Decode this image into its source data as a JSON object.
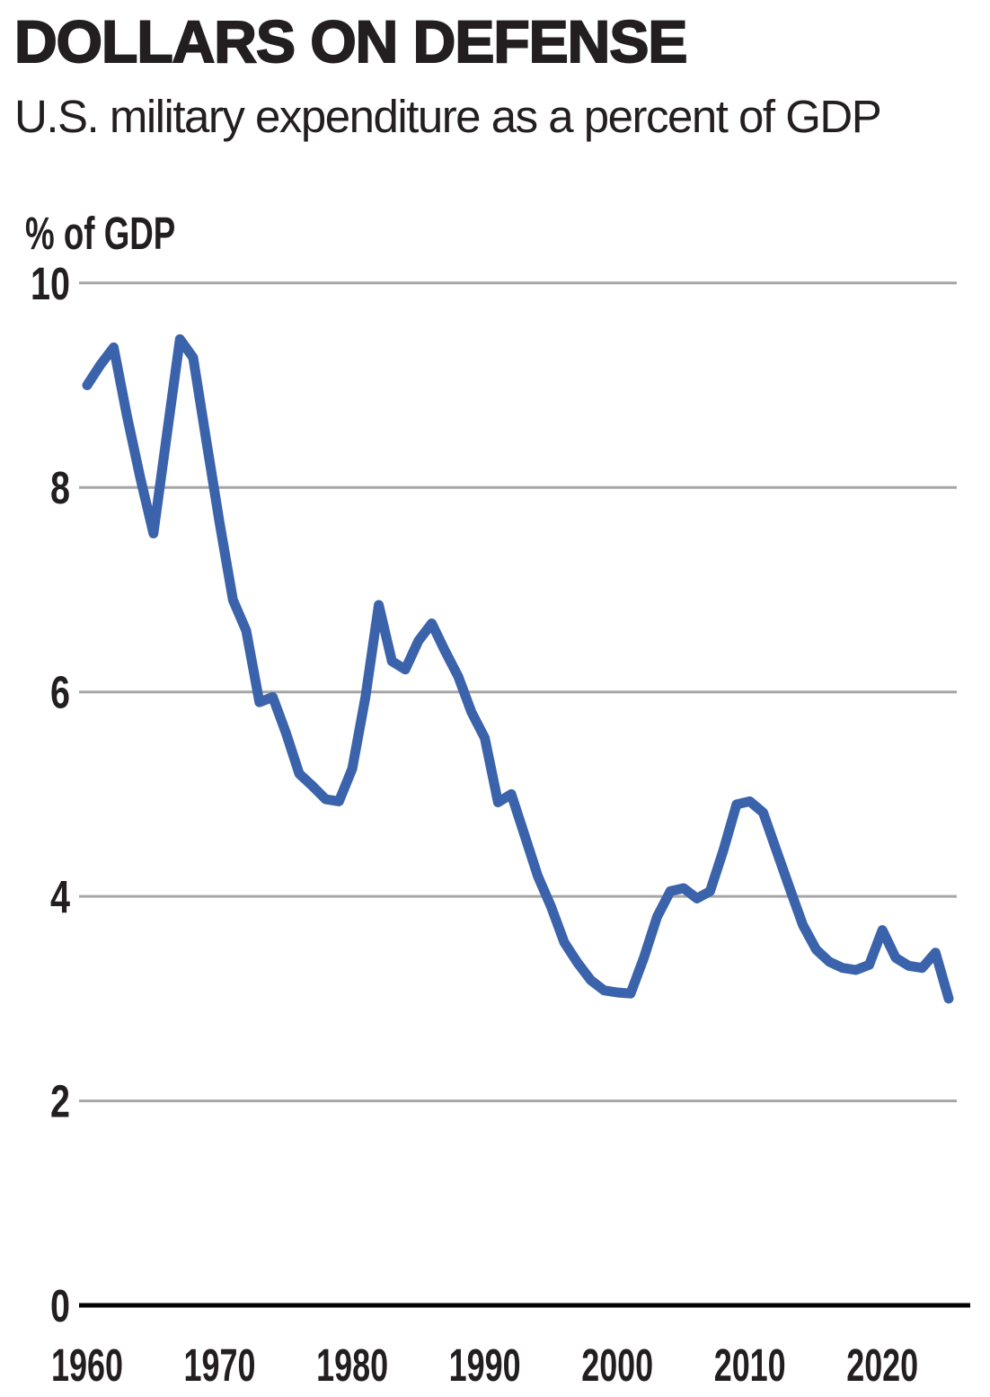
{
  "header": {
    "title": "DOLLARS ON DEFENSE",
    "subtitle": "U.S. military expenditure as a percent of GDP"
  },
  "colors": {
    "line": "#3b63ab",
    "grid": "#a6a6a6",
    "axis": "#000000",
    "text": "#231f20",
    "background": "#ffffff"
  },
  "chart_data": {
    "type": "line",
    "title": "DOLLARS ON DEFENSE",
    "subtitle": "U.S. military expenditure as a percent of GDP",
    "ylabel": "% of GDP",
    "xlabel": "",
    "xlim": [
      1960,
      2025
    ],
    "ylim": [
      0,
      10
    ],
    "x_ticks": [
      1960,
      1970,
      1980,
      1990,
      2000,
      2010,
      2020
    ],
    "y_ticks": [
      0,
      2,
      4,
      6,
      8,
      10
    ],
    "grid": "horizontal-gray-lines",
    "legend": "none",
    "series": [
      {
        "name": "U.S. military expenditure (% of GDP)",
        "color": "#3b63ab",
        "x": [
          1960,
          1961,
          1962,
          1963,
          1964,
          1965,
          1966,
          1967,
          1968,
          1969,
          1970,
          1971,
          1972,
          1973,
          1974,
          1975,
          1976,
          1977,
          1978,
          1979,
          1980,
          1981,
          1982,
          1983,
          1984,
          1985,
          1986,
          1987,
          1988,
          1989,
          1990,
          1991,
          1992,
          1993,
          1994,
          1995,
          1996,
          1997,
          1998,
          1999,
          2000,
          2001,
          2002,
          2003,
          2004,
          2005,
          2006,
          2007,
          2008,
          2009,
          2010,
          2011,
          2012,
          2013,
          2014,
          2015,
          2016,
          2017,
          2018,
          2019,
          2020,
          2021,
          2022,
          2023,
          2024,
          2025
        ],
        "y": [
          9.0,
          9.2,
          9.37,
          8.7,
          8.1,
          7.55,
          8.5,
          9.45,
          9.27,
          8.45,
          7.65,
          6.9,
          6.6,
          5.9,
          5.95,
          5.6,
          5.2,
          5.08,
          4.95,
          4.93,
          5.25,
          5.95,
          6.85,
          6.3,
          6.22,
          6.5,
          6.67,
          6.4,
          6.15,
          5.8,
          5.55,
          4.92,
          5.0,
          4.6,
          4.2,
          3.9,
          3.55,
          3.35,
          3.18,
          3.08,
          3.06,
          3.05,
          3.4,
          3.8,
          4.05,
          4.08,
          3.98,
          4.05,
          4.45,
          4.9,
          4.93,
          4.82,
          4.45,
          4.08,
          3.72,
          3.48,
          3.36,
          3.3,
          3.28,
          3.33,
          3.67,
          3.4,
          3.32,
          3.3,
          3.45,
          3.0
        ]
      }
    ]
  }
}
